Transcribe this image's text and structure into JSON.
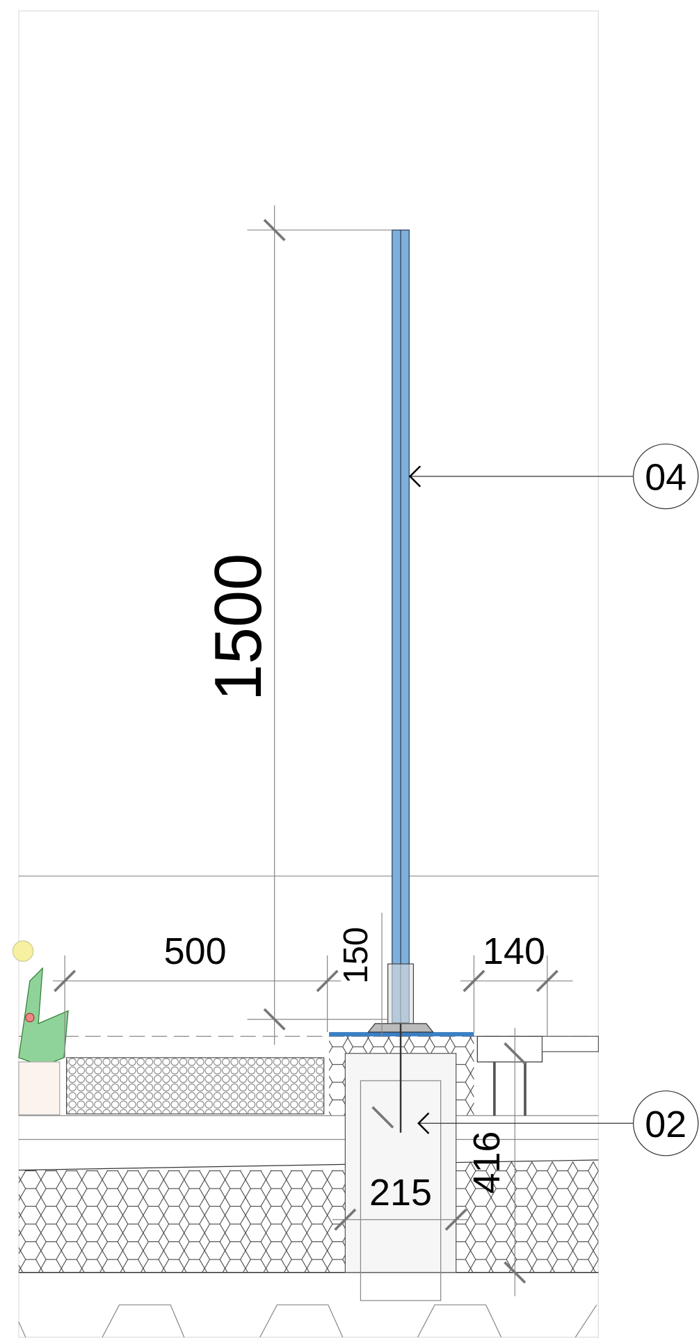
{
  "dimensions": {
    "railing_height": "1500",
    "planter_width": "500",
    "curb_height": "150",
    "deck_width": "140",
    "footing_width": "215",
    "footing_depth": "416"
  },
  "callouts": [
    {
      "label": "04"
    },
    {
      "label": "02"
    }
  ]
}
